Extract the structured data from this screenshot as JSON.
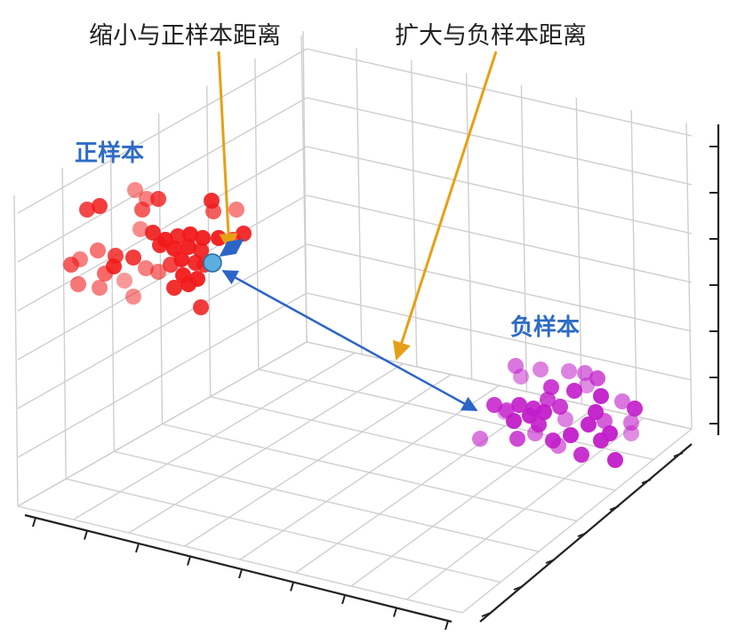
{
  "annotations": {
    "shrink": "缩小与正样本距离",
    "expand": "扩大与负样本距离"
  },
  "clusters": {
    "positive_label": "正样本",
    "negative_label": "负样本"
  },
  "colors": {
    "positive": "#f11a1a",
    "negative": "#c21cc9",
    "anchor": "#5aaee0",
    "arrow_orange": "#e6a017",
    "arrow_blue": "#2c64c8",
    "label_blue": "#2e6cc6",
    "grid": "#cfcfcf",
    "axis": "#222222"
  }
}
